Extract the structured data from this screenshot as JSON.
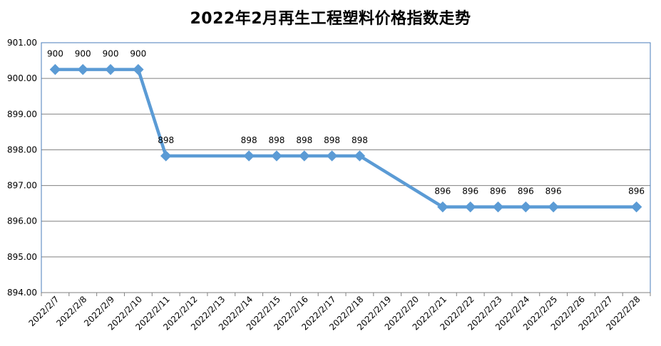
{
  "chart_data": {
    "type": "line",
    "title": "2022年2月再生工程塑料价格指数走势",
    "xlabel": "",
    "ylabel": "",
    "ylim": [
      894,
      901
    ],
    "yticks": [
      "901.00",
      "900.00",
      "899.00",
      "898.00",
      "897.00",
      "896.00",
      "895.00",
      "894.00"
    ],
    "grid": true,
    "legend": "none",
    "categories": [
      "2022/2/7",
      "2022/2/8",
      "2022/2/9",
      "2022/2/10",
      "2022/2/11",
      "2022/2/12",
      "2022/2/13",
      "2022/2/14",
      "2022/2/15",
      "2022/2/16",
      "2022/2/17",
      "2022/2/18",
      "2022/2/19",
      "2022/2/20",
      "2022/2/21",
      "2022/2/22",
      "2022/2/23",
      "2022/2/24",
      "2022/2/25",
      "2022/2/26",
      "2022/2/27",
      "2022/2/28"
    ],
    "points": [
      {
        "x": "2022/2/7",
        "value": 900.25,
        "label": "900"
      },
      {
        "x": "2022/2/8",
        "value": 900.25,
        "label": "900"
      },
      {
        "x": "2022/2/9",
        "value": 900.25,
        "label": "900"
      },
      {
        "x": "2022/2/10",
        "value": 900.25,
        "label": "900"
      },
      {
        "x": "2022/2/11",
        "value": 897.83,
        "label": "898"
      },
      {
        "x": "2022/2/14",
        "value": 897.83,
        "label": "898"
      },
      {
        "x": "2022/2/15",
        "value": 897.83,
        "label": "898"
      },
      {
        "x": "2022/2/16",
        "value": 897.83,
        "label": "898"
      },
      {
        "x": "2022/2/17",
        "value": 897.83,
        "label": "898"
      },
      {
        "x": "2022/2/18",
        "value": 897.83,
        "label": "898"
      },
      {
        "x": "2022/2/21",
        "value": 896.4,
        "label": "896"
      },
      {
        "x": "2022/2/22",
        "value": 896.4,
        "label": "896"
      },
      {
        "x": "2022/2/23",
        "value": 896.4,
        "label": "896"
      },
      {
        "x": "2022/2/24",
        "value": 896.4,
        "label": "896"
      },
      {
        "x": "2022/2/25",
        "value": 896.4,
        "label": "896"
      },
      {
        "x": "2022/2/28",
        "value": 896.4,
        "label": "896"
      }
    ],
    "colors": {
      "line": "#5b9bd5",
      "grid": "#808080",
      "plot_border": "#4a7ebb",
      "axis": "#808080"
    }
  }
}
